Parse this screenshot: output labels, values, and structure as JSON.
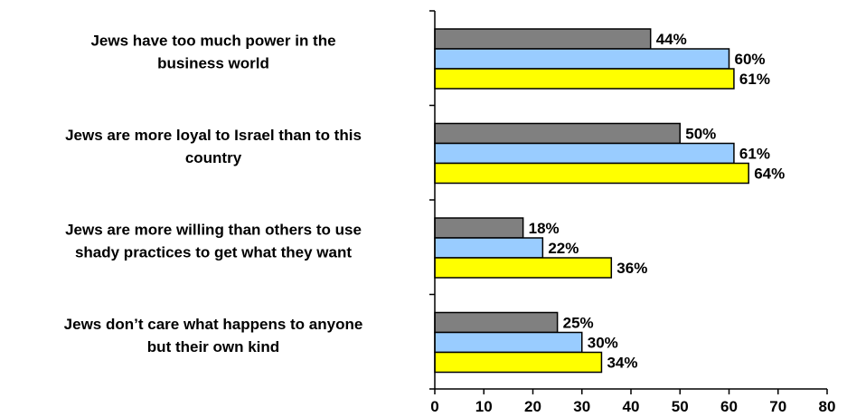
{
  "chart_data": {
    "type": "bar",
    "orientation": "horizontal",
    "categories": [
      [
        "Jews have too much power in the",
        "business world"
      ],
      [
        "Jews are more loyal to Israel than to this",
        "country"
      ],
      [
        "Jews are more willing than others to use",
        "shady practices to get what they want"
      ],
      [
        "Jews don’t care what happens to anyone",
        "but their own kind"
      ]
    ],
    "series": [
      {
        "color": "#808080",
        "values": [
          44,
          50,
          18,
          25
        ],
        "labels": [
          "44%",
          "50%",
          "18%",
          "25%"
        ]
      },
      {
        "color": "#99ccff",
        "values": [
          60,
          61,
          22,
          30
        ],
        "labels": [
          "60%",
          "61%",
          "22%",
          "30%"
        ]
      },
      {
        "color": "#ffff00",
        "values": [
          61,
          64,
          36,
          34
        ],
        "labels": [
          "61%",
          "64%",
          "36%",
          "34%"
        ]
      }
    ],
    "xlim": [
      0,
      80
    ],
    "xticks": [
      "0",
      "10",
      "20",
      "30",
      "40",
      "50",
      "60",
      "70",
      "80"
    ],
    "grid": false,
    "legend": "none",
    "title": "",
    "xlabel": "",
    "ylabel": ""
  }
}
